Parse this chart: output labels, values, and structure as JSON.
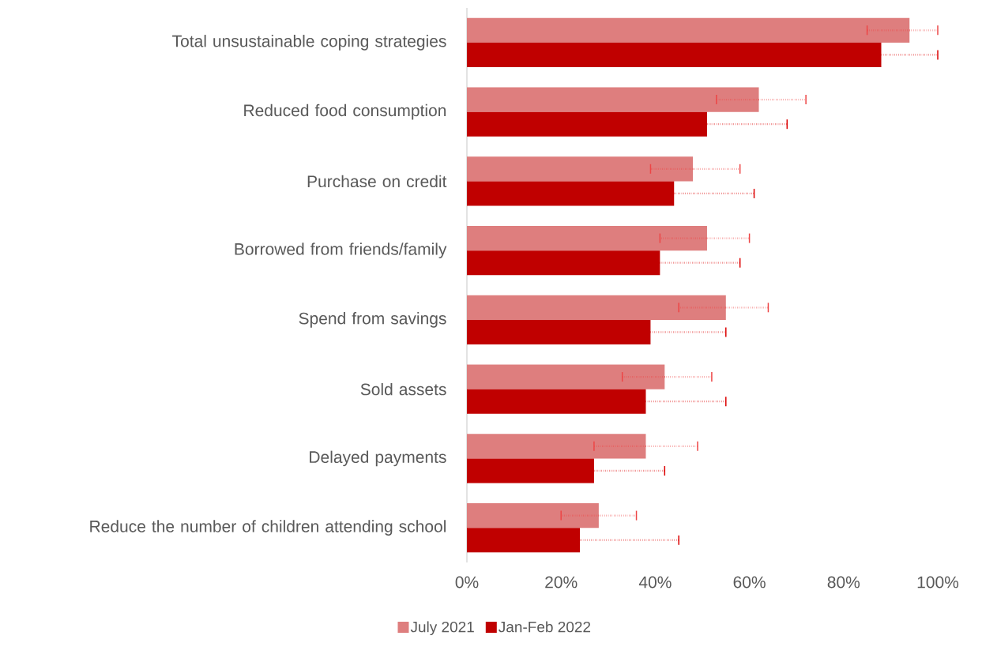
{
  "chart_data": {
    "type": "bar",
    "orientation": "horizontal",
    "legend": "bottom",
    "categories": [
      "Total unsustainable coping strategies",
      "Reduced food consumption",
      "Purchase on credit",
      "Borrowed from friends/family",
      "Spend from savings",
      "Sold assets",
      "Delayed payments",
      "Reduce the number of children attending school"
    ],
    "series": [
      {
        "name": "July 2021",
        "color": "#de7e7e",
        "values": [
          94,
          62,
          48,
          51,
          55,
          42,
          38,
          28
        ],
        "errors": [
          [
            85,
            100
          ],
          [
            53,
            72
          ],
          [
            39,
            58
          ],
          [
            41,
            60
          ],
          [
            45,
            64
          ],
          [
            33,
            52
          ],
          [
            27,
            49
          ],
          [
            20,
            36
          ]
        ]
      },
      {
        "name": "Jan-Feb 2022",
        "color": "#c00000",
        "values": [
          88,
          51,
          44,
          41,
          39,
          38,
          27,
          24
        ],
        "errors": [
          [
            88,
            100
          ],
          [
            51,
            68
          ],
          [
            44,
            61
          ],
          [
            41,
            58
          ],
          [
            39,
            55
          ],
          [
            38,
            55
          ],
          [
            27,
            42
          ],
          [
            24,
            45
          ]
        ]
      }
    ],
    "xlim": [
      0,
      100
    ],
    "xticks": [
      {
        "value": 0,
        "label": "0%"
      },
      {
        "value": 20,
        "label": "20%"
      },
      {
        "value": 40,
        "label": "40%"
      },
      {
        "value": 60,
        "label": "60%"
      },
      {
        "value": 80,
        "label": "80%"
      },
      {
        "value": 100,
        "label": "100%"
      }
    ]
  }
}
